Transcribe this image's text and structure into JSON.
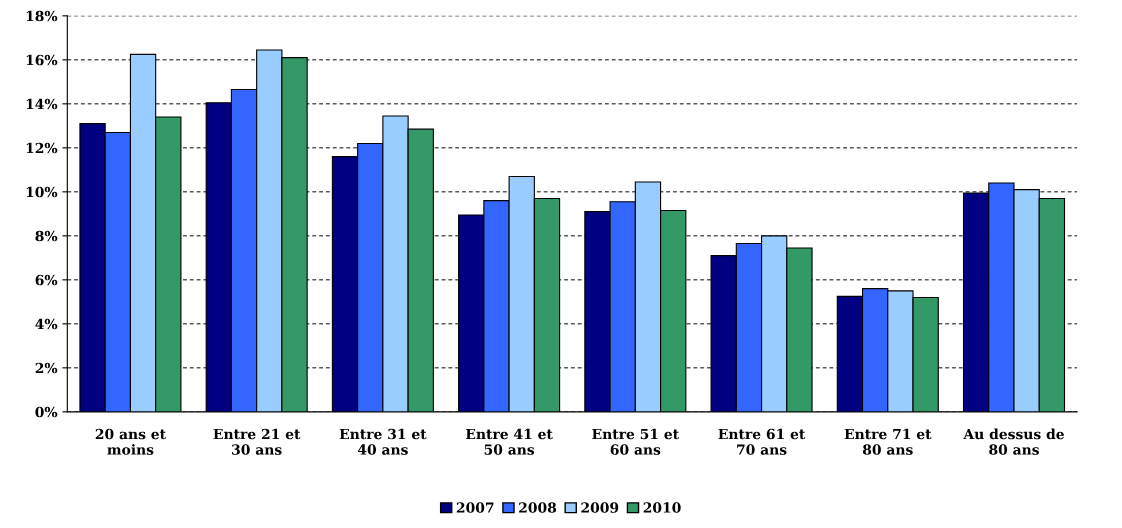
{
  "chart_data": {
    "type": "bar",
    "categories": [
      "20 ans et\nmoins",
      "Entre 21 et\n30 ans",
      "Entre 31 et\n40 ans",
      "Entre 41 et\n50 ans",
      "Entre 51 et\n60 ans",
      "Entre 61 et\n70 ans",
      "Entre 71 et\n80 ans",
      "Au dessus de\n80 ans"
    ],
    "series": [
      {
        "name": "2007",
        "color": "#000080",
        "values": [
          13.1,
          14.05,
          11.6,
          8.95,
          9.1,
          7.1,
          5.25,
          9.95
        ]
      },
      {
        "name": "2008",
        "color": "#3366ff",
        "values": [
          12.7,
          14.65,
          12.2,
          9.6,
          9.55,
          7.65,
          5.6,
          10.4
        ]
      },
      {
        "name": "2009",
        "color": "#99ccff",
        "values": [
          16.25,
          16.45,
          13.45,
          10.7,
          10.45,
          8.0,
          5.5,
          10.1
        ]
      },
      {
        "name": "2010",
        "color": "#339966",
        "values": [
          13.4,
          16.1,
          12.85,
          9.7,
          9.15,
          7.45,
          5.2,
          9.7
        ]
      }
    ],
    "ylim": [
      0,
      18
    ],
    "yticks": [
      {
        "value": 0,
        "label": "0%"
      },
      {
        "value": 2,
        "label": "2%"
      },
      {
        "value": 4,
        "label": "4%"
      },
      {
        "value": 6,
        "label": "6%"
      },
      {
        "value": 8,
        "label": "8%"
      },
      {
        "value": 10,
        "label": "10%"
      },
      {
        "value": 12,
        "label": "12%"
      },
      {
        "value": 14,
        "label": "14%"
      },
      {
        "value": 16,
        "label": "16%"
      },
      {
        "value": 18,
        "label": "18%"
      }
    ],
    "grid": "y",
    "legend": "bottom"
  }
}
